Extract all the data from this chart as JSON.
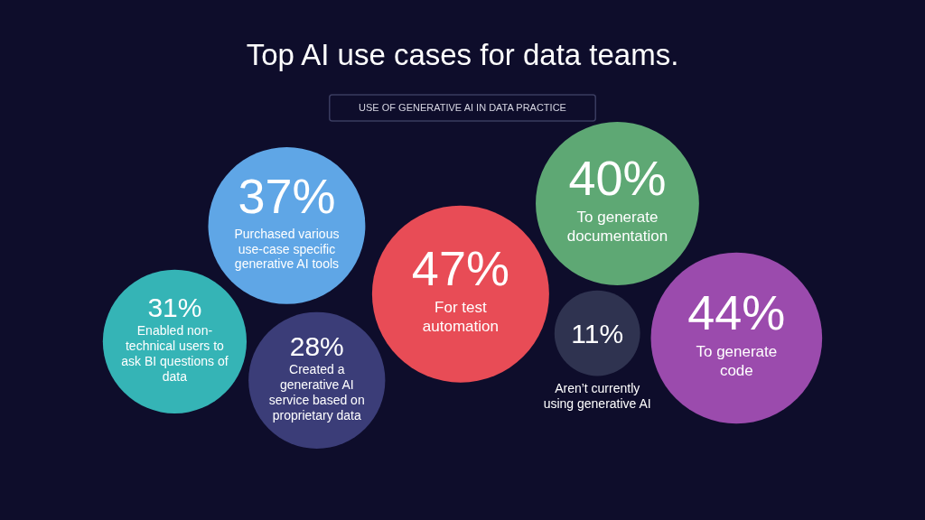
{
  "chart_data": {
    "type": "other",
    "title": "Top AI use cases for data teams.",
    "subtitle": "USE OF GENERATIVE AI IN DATA PRACTICE",
    "categories": [
      "Enabled non-technical users to ask BI questions of data",
      "Purchased various use-case specific generative AI tools",
      "Created a generative AI service based on proprietary data",
      "For test automation",
      "To generate documentation",
      "Aren’t currently using generative AI",
      "To generate code"
    ],
    "values": [
      31,
      37,
      28,
      47,
      40,
      11,
      44
    ],
    "value_labels": [
      "31%",
      "37%",
      "28%",
      "47%",
      "40%",
      "11%",
      "44%"
    ],
    "colors": [
      "#35b4b6",
      "#5fa6e6",
      "#3b3d78",
      "#e84c56",
      "#5ea874",
      "#2f3350",
      "#9b4bad"
    ]
  }
}
